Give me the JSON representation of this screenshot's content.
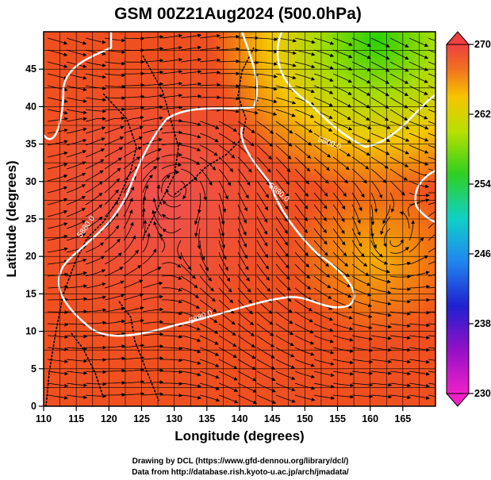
{
  "title": "GSM 00Z21Aug2024 (500.0hPa)",
  "x_axis": {
    "label": "Longitude (degrees)",
    "ticks": [
      "110",
      "115",
      "120",
      "125",
      "130",
      "135",
      "140",
      "145",
      "150",
      "155",
      "160",
      "165"
    ],
    "range": [
      110,
      170
    ]
  },
  "y_axis": {
    "label": "Latitude (degrees)",
    "ticks": [
      "0",
      "5",
      "10",
      "15",
      "20",
      "25",
      "30",
      "35",
      "40",
      "45"
    ],
    "range": [
      0,
      50
    ]
  },
  "colorbar": {
    "ticks": [
      "230",
      "238",
      "246",
      "254",
      "262",
      "270"
    ],
    "range": [
      230,
      270
    ]
  },
  "contours": {
    "label_5800": "5800.0",
    "label_5880": "5880.0"
  },
  "credits": {
    "line1": "Drawing by DCL (https://www.gfd-dennou.org/library/dcl/)",
    "line2": "Data from http://database.rish.kyoto-u.ac.jp/arch/jmadata/"
  },
  "colors": {
    "warm_high": "#f04848",
    "warm": "#f05020",
    "mid": "#f7c400",
    "cool": "#34d000",
    "contour": "#ffffff",
    "coast": "#000000"
  }
}
